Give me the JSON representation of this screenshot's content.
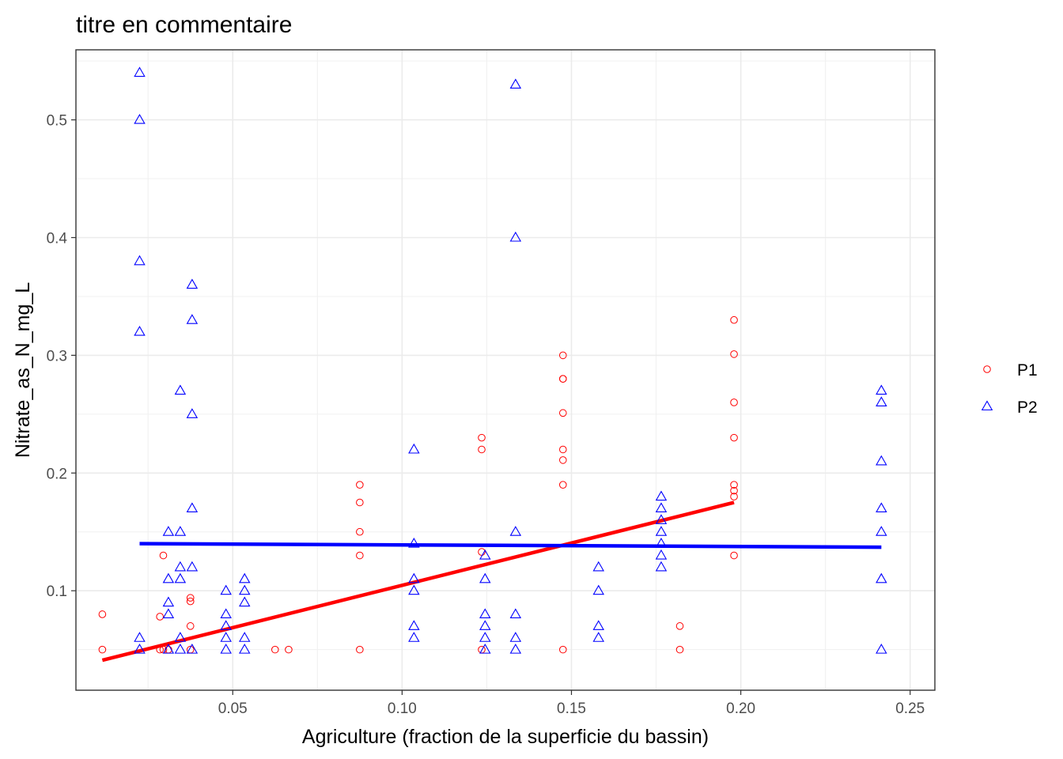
{
  "chart_data": {
    "type": "scatter",
    "title": "titre en commentaire",
    "xlabel": "Agriculture (fraction de la superficie du bassin)",
    "ylabel": "Nitrate_as_N_mg_L",
    "xlim": [
      0.0037,
      0.2573
    ],
    "ylim": [
      0.0155,
      0.5595
    ],
    "x_ticks": [
      0.05,
      0.1,
      0.15,
      0.2,
      0.25
    ],
    "x_tick_labels": [
      "0.05",
      "0.10",
      "0.15",
      "0.20",
      "0.25"
    ],
    "y_ticks": [
      0.1,
      0.2,
      0.3,
      0.4,
      0.5
    ],
    "y_tick_labels": [
      "0.1",
      "0.2",
      "0.3",
      "0.4",
      "0.5"
    ],
    "grid": true,
    "legend_position": "right",
    "series": [
      {
        "name": "P1",
        "color": "#ff0000",
        "marker": "circle",
        "points": [
          [
            0.0115,
            0.08
          ],
          [
            0.0115,
            0.05
          ],
          [
            0.0285,
            0.078
          ],
          [
            0.0285,
            0.05
          ],
          [
            0.0295,
            0.13
          ],
          [
            0.0295,
            0.05
          ],
          [
            0.031,
            0.05
          ],
          [
            0.0375,
            0.094
          ],
          [
            0.0375,
            0.091
          ],
          [
            0.0375,
            0.07
          ],
          [
            0.0375,
            0.05
          ],
          [
            0.0625,
            0.05
          ],
          [
            0.0665,
            0.05
          ],
          [
            0.0875,
            0.19
          ],
          [
            0.0875,
            0.175
          ],
          [
            0.0875,
            0.15
          ],
          [
            0.0875,
            0.13
          ],
          [
            0.0875,
            0.05
          ],
          [
            0.1235,
            0.23
          ],
          [
            0.1235,
            0.22
          ],
          [
            0.1235,
            0.133
          ],
          [
            0.1235,
            0.05
          ],
          [
            0.1475,
            0.3
          ],
          [
            0.1475,
            0.28
          ],
          [
            0.1475,
            0.28
          ],
          [
            0.1475,
            0.251
          ],
          [
            0.1475,
            0.22
          ],
          [
            0.1475,
            0.211
          ],
          [
            0.1475,
            0.19
          ],
          [
            0.1475,
            0.05
          ],
          [
            0.182,
            0.07
          ],
          [
            0.182,
            0.05
          ],
          [
            0.198,
            0.33
          ],
          [
            0.198,
            0.301
          ],
          [
            0.198,
            0.26
          ],
          [
            0.198,
            0.23
          ],
          [
            0.198,
            0.19
          ],
          [
            0.198,
            0.185
          ],
          [
            0.198,
            0.18
          ],
          [
            0.198,
            0.13
          ]
        ],
        "trend": [
          [
            0.0115,
            0.041
          ],
          [
            0.198,
            0.175
          ]
        ]
      },
      {
        "name": "P2",
        "color": "#0000ff",
        "marker": "triangle",
        "points": [
          [
            0.0225,
            0.54
          ],
          [
            0.0225,
            0.5
          ],
          [
            0.0225,
            0.38
          ],
          [
            0.0225,
            0.32
          ],
          [
            0.0225,
            0.06
          ],
          [
            0.0225,
            0.05
          ],
          [
            0.031,
            0.15
          ],
          [
            0.031,
            0.11
          ],
          [
            0.031,
            0.09
          ],
          [
            0.031,
            0.08
          ],
          [
            0.031,
            0.05
          ],
          [
            0.0345,
            0.27
          ],
          [
            0.0345,
            0.15
          ],
          [
            0.0345,
            0.12
          ],
          [
            0.0345,
            0.11
          ],
          [
            0.0345,
            0.06
          ],
          [
            0.0345,
            0.05
          ],
          [
            0.038,
            0.36
          ],
          [
            0.038,
            0.33
          ],
          [
            0.038,
            0.25
          ],
          [
            0.038,
            0.17
          ],
          [
            0.038,
            0.12
          ],
          [
            0.038,
            0.05
          ],
          [
            0.048,
            0.1
          ],
          [
            0.048,
            0.08
          ],
          [
            0.048,
            0.07
          ],
          [
            0.048,
            0.06
          ],
          [
            0.048,
            0.05
          ],
          [
            0.0535,
            0.11
          ],
          [
            0.0535,
            0.1
          ],
          [
            0.0535,
            0.09
          ],
          [
            0.0535,
            0.06
          ],
          [
            0.0535,
            0.05
          ],
          [
            0.1035,
            0.22
          ],
          [
            0.1035,
            0.14
          ],
          [
            0.1035,
            0.11
          ],
          [
            0.1035,
            0.1
          ],
          [
            0.1035,
            0.07
          ],
          [
            0.1035,
            0.06
          ],
          [
            0.1245,
            0.13
          ],
          [
            0.1245,
            0.11
          ],
          [
            0.1245,
            0.08
          ],
          [
            0.1245,
            0.07
          ],
          [
            0.1245,
            0.06
          ],
          [
            0.1245,
            0.05
          ],
          [
            0.1335,
            0.53
          ],
          [
            0.1335,
            0.4
          ],
          [
            0.1335,
            0.15
          ],
          [
            0.1335,
            0.08
          ],
          [
            0.1335,
            0.06
          ],
          [
            0.1335,
            0.05
          ],
          [
            0.158,
            0.12
          ],
          [
            0.158,
            0.1
          ],
          [
            0.158,
            0.07
          ],
          [
            0.158,
            0.06
          ],
          [
            0.1765,
            0.18
          ],
          [
            0.1765,
            0.17
          ],
          [
            0.1765,
            0.16
          ],
          [
            0.1765,
            0.15
          ],
          [
            0.1765,
            0.14
          ],
          [
            0.1765,
            0.13
          ],
          [
            0.1765,
            0.12
          ],
          [
            0.2415,
            0.27
          ],
          [
            0.2415,
            0.26
          ],
          [
            0.2415,
            0.21
          ],
          [
            0.2415,
            0.17
          ],
          [
            0.2415,
            0.15
          ],
          [
            0.2415,
            0.11
          ],
          [
            0.2415,
            0.05
          ]
        ],
        "trend": [
          [
            0.0225,
            0.14
          ],
          [
            0.2415,
            0.137
          ]
        ]
      }
    ]
  }
}
